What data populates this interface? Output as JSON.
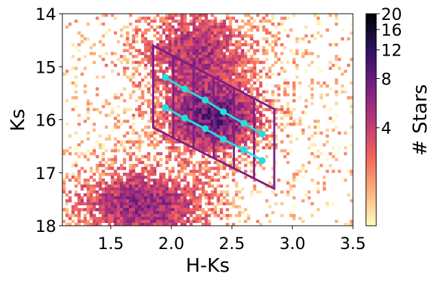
{
  "chart_data": {
    "type": "heatmap",
    "title": "",
    "xlabel": "H-Ks",
    "ylabel": "Ks",
    "xlim": [
      1.1,
      3.5
    ],
    "ylim": [
      18,
      14
    ],
    "y_inverted": true,
    "xticks": [
      1.5,
      2.0,
      2.5,
      3.0,
      3.5
    ],
    "xtick_labels": [
      "1.5",
      "2.0",
      "2.5",
      "3.0",
      "3.5"
    ],
    "yticks": [
      14,
      15,
      16,
      17,
      18
    ],
    "ytick_labels": [
      "14",
      "15",
      "16",
      "17",
      "18"
    ],
    "grid": false,
    "colormap": "magma_r",
    "colorbar": {
      "label": "# Stars",
      "range": [
        1,
        20
      ],
      "scale": "log",
      "ticks": [
        4,
        8,
        12,
        16,
        20
      ],
      "tick_labels": [
        "4",
        "8",
        "12",
        "16",
        "20"
      ],
      "colors": [
        "#fcfdbf",
        "#feb078",
        "#f1605d",
        "#b73779",
        "#721f81",
        "#2c115f",
        "#000004"
      ]
    },
    "density_clumps": [
      {
        "x": 2.2,
        "y": 14.7,
        "sx": 0.35,
        "sy": 0.6,
        "weight": 0.7
      },
      {
        "x": 2.35,
        "y": 16.0,
        "sx": 0.3,
        "sy": 0.45,
        "weight": 1.0
      },
      {
        "x": 1.75,
        "y": 17.6,
        "sx": 0.4,
        "sy": 0.5,
        "weight": 0.85
      }
    ],
    "grid_overlay": {
      "color": "#7b1f86",
      "top_left": [
        1.85,
        14.6
      ],
      "bottom_left": [
        1.85,
        16.15
      ],
      "top_right": [
        2.85,
        15.8
      ],
      "bottom_right": [
        2.85,
        17.3
      ],
      "columns": 6
    },
    "series": [
      {
        "color": "#1ee0e0",
        "x": [
          1.95,
          2.11,
          2.28,
          2.43,
          2.6,
          2.75
        ],
        "y": [
          15.2,
          15.42,
          15.63,
          15.85,
          16.07,
          16.27
        ]
      },
      {
        "color": "#1ee0e0",
        "x": [
          1.95,
          2.11,
          2.28,
          2.43,
          2.6,
          2.75
        ],
        "y": [
          15.77,
          15.97,
          16.17,
          16.37,
          16.57,
          16.77
        ]
      }
    ]
  }
}
